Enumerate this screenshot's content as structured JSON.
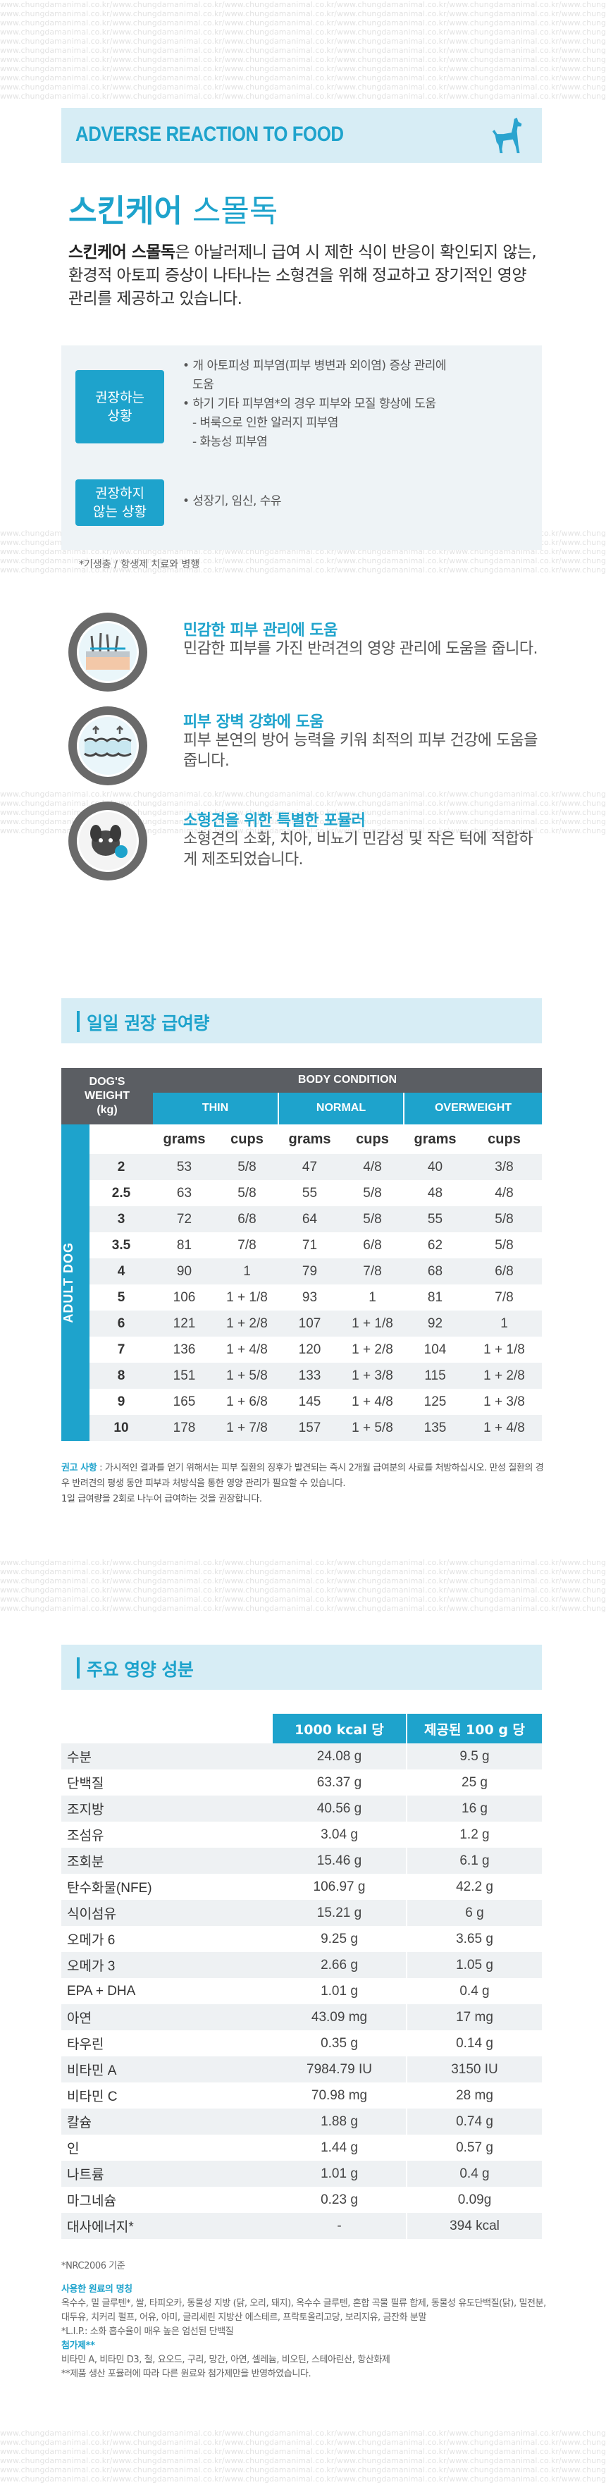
{
  "watermark": "www.chungdamanimal.co.kr/www.chungdamanimal.co.kr/www.chungdamanimal.co.kr/www.chungdamanimal.co.kr/www.chungdamanimal.co.kr/www.chungdamanimal.co.kr/www.chungdamanimal.co.kr/",
  "header": {
    "title": "ADVERSE REACTION TO FOOD",
    "icon": "dog-silhouette-icon"
  },
  "product": {
    "name_bold": "스킨케어",
    "name_light": " 스몰독",
    "intro_bold": "스킨케어 스몰독",
    "intro_rest": "은 아날러제니 급여 시 제한 식이 반응이 확인되지 않는, 환경적 아토피 증상이 나타나는 소형견을 위해 정교하고 장기적인 영양 관리를 제공하고 있습니다."
  },
  "indications": {
    "recommended_label": "권장하는\n상황",
    "recommended_items": [
      "• 개 아토피성 피부염(피부 병변과 외이염) 증상 관리에",
      "  도움",
      "• 하기 기타 피부염*의 경우 피부와 모질 향상에 도움",
      "  - 벼룩으로 인한 알러지 피부염",
      "  - 화농성 피부염"
    ],
    "not_recommended_label": "권장하지\n않는 상황",
    "not_recommended_items": [
      "• 성장기, 임신, 수유"
    ],
    "footnote": "*기생충 / 항생제 치료와 병행"
  },
  "features": [
    {
      "icon": "skin-layers-icon",
      "title": "민감한 피부 관리에 도움",
      "desc": "민감한 피부를 가진 반려견의 영양 관리에 도움을 줍니다."
    },
    {
      "icon": "intestine-barrier-icon",
      "title": "피부 장벽 강화에 도움",
      "desc": "피부 본연의 방어 능력을 키워 최적의 피부 건강에 도움을 줍니다."
    },
    {
      "icon": "small-dog-kibble-icon",
      "title": "소형견을 위한 특별한 포뮬러",
      "desc": "소형견의 소화, 치아, 비뇨기 민감성 및 작은 턱에 적합하게 제조되었습니다."
    }
  ],
  "feeding": {
    "section_title": "일일 권장 급여량",
    "weight_header": "DOG'S\nWEIGHT\n(kg)",
    "body_condition": "BODY CONDITION",
    "conditions": [
      "THIN",
      "NORMAL",
      "OVERWEIGHT"
    ],
    "unit_grams": "grams",
    "unit_cups": "cups",
    "side_label": "ADULT DOG",
    "rows": [
      {
        "kg": "2",
        "thin_g": "53",
        "thin_c": "5/8",
        "normal_g": "47",
        "normal_c": "4/8",
        "over_g": "40",
        "over_c": "3/8"
      },
      {
        "kg": "2.5",
        "thin_g": "63",
        "thin_c": "5/8",
        "normal_g": "55",
        "normal_c": "5/8",
        "over_g": "48",
        "over_c": "4/8"
      },
      {
        "kg": "3",
        "thin_g": "72",
        "thin_c": "6/8",
        "normal_g": "64",
        "normal_c": "5/8",
        "over_g": "55",
        "over_c": "5/8"
      },
      {
        "kg": "3.5",
        "thin_g": "81",
        "thin_c": "7/8",
        "normal_g": "71",
        "normal_c": "6/8",
        "over_g": "62",
        "over_c": "5/8"
      },
      {
        "kg": "4",
        "thin_g": "90",
        "thin_c": "1",
        "normal_g": "79",
        "normal_c": "7/8",
        "over_g": "68",
        "over_c": "6/8"
      },
      {
        "kg": "5",
        "thin_g": "106",
        "thin_c": "1 + 1/8",
        "normal_g": "93",
        "normal_c": "1",
        "over_g": "81",
        "over_c": "7/8"
      },
      {
        "kg": "6",
        "thin_g": "121",
        "thin_c": "1 + 2/8",
        "normal_g": "107",
        "normal_c": "1 + 1/8",
        "over_g": "92",
        "over_c": "1"
      },
      {
        "kg": "7",
        "thin_g": "136",
        "thin_c": "1 + 4/8",
        "normal_g": "120",
        "normal_c": "1 + 2/8",
        "over_g": "104",
        "over_c": "1 + 1/8"
      },
      {
        "kg": "8",
        "thin_g": "151",
        "thin_c": "1 + 5/8",
        "normal_g": "133",
        "normal_c": "1 + 3/8",
        "over_g": "115",
        "over_c": "1 + 2/8"
      },
      {
        "kg": "9",
        "thin_g": "165",
        "thin_c": "1 + 6/8",
        "normal_g": "145",
        "normal_c": "1 + 4/8",
        "over_g": "125",
        "over_c": "1 + 3/8"
      },
      {
        "kg": "10",
        "thin_g": "178",
        "thin_c": "1 + 7/8",
        "normal_g": "157",
        "normal_c": "1 + 5/8",
        "over_g": "135",
        "over_c": "1 + 4/8"
      }
    ],
    "note_label": "권고 사항",
    "note_text": " : 가시적인 결과를 얻기 위해서는 피부 질환의 징후가 발견되는 즉시 2개월 급여분의 사료를 처방하십시오. 만성 질환의 경우 반려견의 평생 동안 피부과 처방식을 통한 영양 관리가 필요할 수 있습니다.",
    "note_text2": "1일 급여량을 2회로 나누어 급여하는 것을 권장합니다."
  },
  "nutrition": {
    "section_title": "주요 영양 성분",
    "col1": "1000 kcal 당",
    "col2": "제공된 100 g 당",
    "rows": [
      {
        "name": "수분",
        "a": "24.08 g",
        "b": "9.5 g"
      },
      {
        "name": "단백질",
        "a": "63.37 g",
        "b": "25 g"
      },
      {
        "name": "조지방",
        "a": "40.56 g",
        "b": "16 g"
      },
      {
        "name": "조섬유",
        "a": "3.04 g",
        "b": "1.2 g"
      },
      {
        "name": "조회분",
        "a": "15.46 g",
        "b": "6.1 g"
      },
      {
        "name": "탄수화물(NFE)",
        "a": "106.97 g",
        "b": "42.2 g"
      },
      {
        "name": "식이섬유",
        "a": "15.21 g",
        "b": "6 g"
      },
      {
        "name": "오메가 6",
        "a": "9.25 g",
        "b": "3.65 g"
      },
      {
        "name": "오메가 3",
        "a": "2.66 g",
        "b": "1.05 g"
      },
      {
        "name": "EPA + DHA",
        "a": "1.01 g",
        "b": "0.4 g"
      },
      {
        "name": "아연",
        "a": "43.09 mg",
        "b": "17 mg"
      },
      {
        "name": "타우린",
        "a": "0.35 g",
        "b": "0.14 g"
      },
      {
        "name": "비타민 A",
        "a": "7984.79 IU",
        "b": "3150 IU"
      },
      {
        "name": "비타민 C",
        "a": "70.98 mg",
        "b": "28 mg"
      },
      {
        "name": "칼슘",
        "a": "1.88 g",
        "b": "0.74 g"
      },
      {
        "name": "인",
        "a": "1.44 g",
        "b": "0.57 g"
      },
      {
        "name": "나트륨",
        "a": "1.01 g",
        "b": "0.4 g"
      },
      {
        "name": "마그네슘",
        "a": "0.23 g",
        "b": "0.09g"
      },
      {
        "name": "대사에너지*",
        "a": "-",
        "b": "394 kcal"
      }
    ],
    "nrc_note": "*NRC2006 기준",
    "ingredients_title": "사용한 원료의 명칭",
    "ingredients_text": "옥수수, 밀 글루텐*, 쌀, 타피오카, 동물성 지방 (닭, 오리, 돼지), 옥수수 글루텐, 혼합 곡물 필류 합제, 동물성 유도단백질(닭), 밀전분, 대두유, 치커리 펄프, 어유, 아미, 글리세린 지방산 에스테르, 프락토올리고당, 보리지유, 금잔화 분말",
    "lip_note": "*L.I.P.: 소화 흡수율이 매우 높은 엄선된 단백질",
    "additives_title": "첨가제**",
    "additives_text": "비타민 A, 비타민 D3, 철, 요오드, 구리, 망간, 아연, 셀레늄, 비오틴, 스테아린산, 항산화제",
    "additives_note": "**제품 생산 포뮬러에 따라 다른 원료와 첨가제만을 반영하였습니다."
  }
}
